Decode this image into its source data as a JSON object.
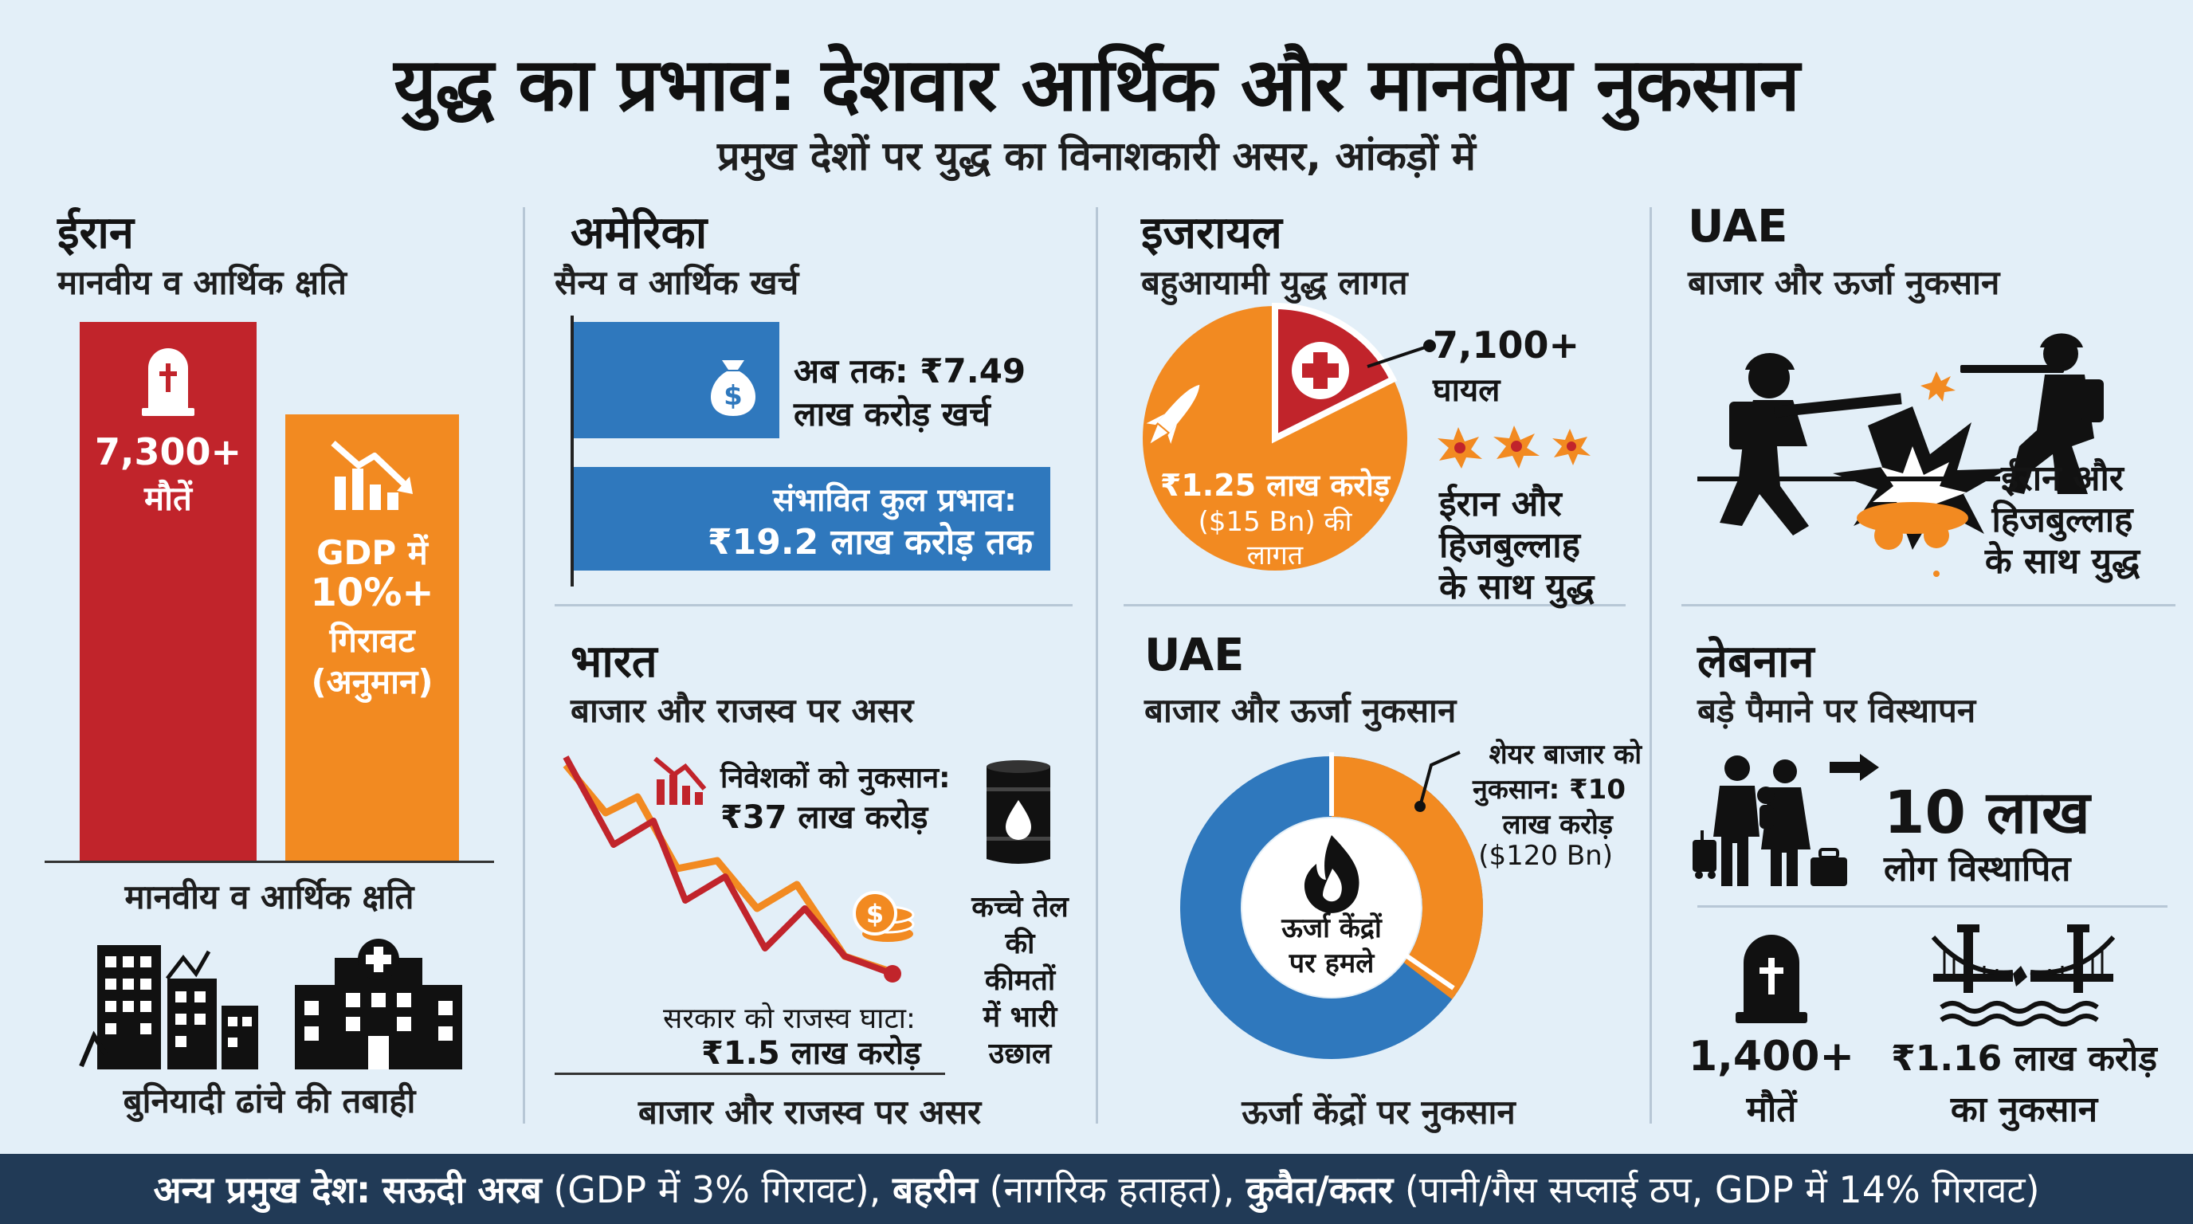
{
  "header": {
    "title": "युद्ध का प्रभाव: देशवार आर्थिक और मानवीय नुकसान",
    "subtitle": "प्रमुख देशों पर युद्ध का विनाशकारी असर, आंकड़ों में"
  },
  "iran": {
    "title": "ईरान",
    "subtitle": "मानवीय व आर्थिक क्षति",
    "deaths_value": "7,300+",
    "deaths_label": "मौतें",
    "gdp_line1": "GDP में",
    "gdp_line2": "10%+",
    "gdp_line3": "गिरावट",
    "gdp_line4": "(अनुमान)",
    "baseline_label": "मानवीय व आर्थिक क्षति",
    "infra_label": "बुनियादी ढांचे की तबाही"
  },
  "usa": {
    "title": "अमेरिका",
    "subtitle": "सैन्य व आर्थिक खर्च",
    "spent_line1": "अब तक: ₹7.49",
    "spent_line2": "लाख करोड़ खर्च",
    "impact_line1": "संभावित कुल प्रभाव:",
    "impact_line2": "₹19.2 लाख करोड़ तक"
  },
  "israel": {
    "title": "इजरायल",
    "subtitle": "बहुआयामी युद्ध लागत",
    "injured_value": "7,100+",
    "injured_label": "घायल",
    "cost_line1": "₹1.25 लाख करोड़",
    "cost_line2": "($15 Bn) की",
    "cost_line3": "लागत",
    "war_line1": "ईरान और",
    "war_line2": "हिजबुल्लाह",
    "war_line3": "के साथ युद्ध"
  },
  "uae_top": {
    "title": "UAE",
    "subtitle": "बाजार और ऊर्जा नुकसान",
    "war_line1": "ईरान और",
    "war_line2": "हिजबुल्लाह",
    "war_line3": "के साथ युद्ध"
  },
  "india": {
    "title": "भारत",
    "subtitle": "बाजार और राजस्व पर असर",
    "investor_line1": "निवेशकों को नुकसान:",
    "investor_line2": "₹37 लाख करोड़",
    "revenue_line1": "सरकार को राजस्व घाटा:",
    "revenue_line2": "₹1.5 लाख करोड़",
    "oil_line1": "कच्चे तेल",
    "oil_line2": "की",
    "oil_line3": "कीमतों",
    "oil_line4": "में भारी",
    "oil_line5": "उछाल",
    "bottom_label": "बाजार और राजस्व पर असर"
  },
  "uae_bottom": {
    "title": "UAE",
    "subtitle": "बाजार और ऊर्जा नुकसान",
    "share_line1": "शेयर बाजार को",
    "share_line2": "नुकसान: ₹10",
    "share_line3": "लाख करोड़",
    "share_line4": "($120 Bn)",
    "center_line1": "ऊर्जा केंद्रों",
    "center_line2": "पर हमले",
    "bottom_label": "ऊर्जा केंद्रों पर नुकसान"
  },
  "lebanon": {
    "title": "लेबनान",
    "subtitle": "बड़े पैमाने पर विस्थापन",
    "displaced_value": "10 लाख",
    "displaced_label": "लोग विस्थापित",
    "deaths_value": "1,400+",
    "deaths_label": "मौतें",
    "loss_value": "₹1.16 लाख करोड़",
    "loss_label": "का नुकसान"
  },
  "footer": {
    "lead": "अन्य प्रमुख देश:",
    "c1_name": "सऊदी अरब",
    "c1_note": "(GDP में 3% गिरावट),",
    "c2_name": "बहरीन",
    "c2_note": "(नागरिक हताहत),",
    "c3_name": "कुवैत/कतर",
    "c3_note": "(पानी/गैस सप्लाई ठप, GDP में 14% गिरावट)"
  },
  "colors": {
    "red": "#c1242b",
    "orange": "#f28a21",
    "blue": "#2f78bd",
    "navy": "#213a56",
    "bg": "#e3eff8"
  },
  "icons": {
    "tombstone": "tombstone-icon",
    "declining_chart": "declining-chart-icon",
    "money_bag": "money-bag-icon",
    "rocket": "rocket-icon",
    "medical_cross": "medical-cross-icon",
    "explosion": "explosion-icon",
    "soldier": "soldier-icon",
    "oil_barrel": "oil-barrel-icon",
    "coins": "coins-icon",
    "flame": "flame-icon",
    "family": "family-icon",
    "bridge": "bridge-icon",
    "buildings": "buildings-icon",
    "hospital": "hospital-icon"
  }
}
